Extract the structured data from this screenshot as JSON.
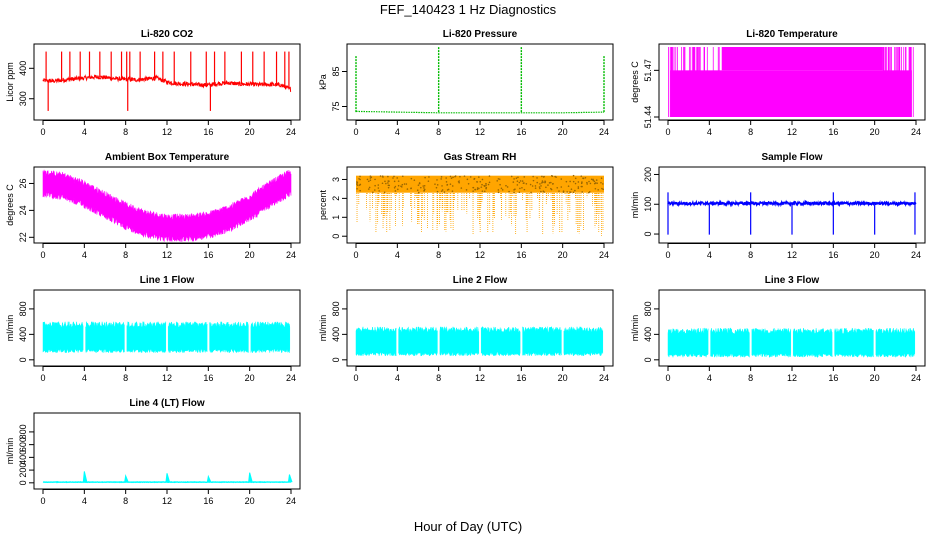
{
  "figure": {
    "title": "FEF_140423  1 Hz Diagnostics",
    "xlabel": "Hour of Day (UTC)"
  },
  "chart_data": [
    {
      "type": "line",
      "title": "Li-820 CO2",
      "ylabel": "Licor ppm",
      "color": "#ff0000",
      "x_ticks": [
        "0",
        "4",
        "8",
        "12",
        "16",
        "20",
        "24"
      ],
      "y_ticks": [
        "300",
        "400"
      ],
      "ylim": [
        240,
        470
      ],
      "series": [
        {
          "name": "",
          "x": [
            0,
            1,
            2,
            3,
            4,
            5,
            6,
            7,
            8,
            9,
            10,
            11,
            12,
            13,
            14,
            15,
            16,
            17,
            18,
            19,
            20,
            21,
            22,
            23,
            24
          ],
          "values": [
            360,
            358,
            362,
            365,
            368,
            372,
            370,
            366,
            364,
            362,
            365,
            368,
            355,
            350,
            348,
            346,
            345,
            350,
            352,
            348,
            348,
            346,
            347,
            345,
            330
          ]
        }
      ]
    },
    {
      "type": "line",
      "title": "Li-820 Pressure",
      "ylabel": "kPa",
      "color": "#00bb00",
      "x_ticks": [
        "0",
        "4",
        "8",
        "12",
        "16",
        "20",
        "24"
      ],
      "y_ticks": [
        "75",
        "85"
      ],
      "ylim": [
        72,
        92
      ],
      "series": [
        {
          "name": "",
          "x": [
            0,
            4,
            8,
            12,
            16,
            20,
            24
          ],
          "values": [
            73.6,
            73.4,
            73.2,
            73.2,
            73.2,
            73.2,
            73.4
          ]
        }
      ]
    },
    {
      "type": "line",
      "title": "Li-820 Temperature",
      "ylabel": "degrees C",
      "color": "#ff00ff",
      "x_ticks": [
        "0",
        "4",
        "8",
        "12",
        "16",
        "20",
        "24"
      ],
      "y_ticks": [
        "51.44",
        "51.47"
      ],
      "ylim": [
        51.44,
        51.485
      ],
      "series": [
        {
          "name": "",
          "x": [
            0,
            24
          ],
          "values": [
            51.44,
            51.47
          ]
        }
      ]
    },
    {
      "type": "line",
      "title": "Ambient Box Temperature",
      "ylabel": "degrees C",
      "color": "#ff00ff",
      "x_ticks": [
        "0",
        "4",
        "8",
        "12",
        "16",
        "20",
        "24"
      ],
      "y_ticks": [
        "22",
        "24",
        "26"
      ],
      "ylim": [
        21.8,
        27.0
      ],
      "series": [
        {
          "name": "",
          "x": [
            0,
            2,
            4,
            6,
            8,
            10,
            12,
            14,
            16,
            18,
            20,
            22,
            24
          ],
          "values": [
            26.0,
            25.8,
            25.2,
            24.4,
            23.6,
            23.0,
            22.7,
            22.7,
            22.9,
            23.4,
            24.2,
            25.2,
            26.1
          ]
        }
      ]
    },
    {
      "type": "line",
      "title": "Gas Stream RH",
      "ylabel": "percent",
      "color": "#ffa500",
      "x_ticks": [
        "0",
        "4",
        "8",
        "12",
        "16",
        "20",
        "24"
      ],
      "y_ticks": [
        "0",
        "1",
        "2",
        "3"
      ],
      "ylim": [
        -0.2,
        3.5
      ],
      "series": [
        {
          "name": "",
          "x": [
            0,
            24
          ],
          "values": [
            2.9,
            2.9
          ]
        }
      ]
    },
    {
      "type": "line",
      "title": "Sample Flow",
      "ylabel": "ml/min",
      "color": "#0000ff",
      "x_ticks": [
        "0",
        "4",
        "8",
        "12",
        "16",
        "20",
        "24"
      ],
      "y_ticks": [
        "0",
        "100",
        "200"
      ],
      "ylim": [
        -20,
        215
      ],
      "series": [
        {
          "name": "",
          "x": [
            0,
            24
          ],
          "values": [
            105,
            105
          ]
        }
      ]
    },
    {
      "type": "area",
      "title": "Line 1 Flow",
      "ylabel": "ml/min",
      "color": "#00ffff",
      "x_ticks": [
        "0",
        "4",
        "8",
        "12",
        "16",
        "20",
        "24"
      ],
      "y_ticks": [
        "0",
        "400",
        "800"
      ],
      "ylim": [
        -50,
        1050
      ],
      "series": [
        {
          "name": "",
          "x": [
            0,
            24
          ],
          "values": [
            110,
            600
          ]
        }
      ]
    },
    {
      "type": "area",
      "title": "Line 2 Flow",
      "ylabel": "ml/min",
      "color": "#00ffff",
      "x_ticks": [
        "0",
        "4",
        "8",
        "12",
        "16",
        "20",
        "24"
      ],
      "y_ticks": [
        "0",
        "400",
        "800"
      ],
      "ylim": [
        -50,
        1050
      ],
      "series": [
        {
          "name": "",
          "x": [
            0,
            24
          ],
          "values": [
            60,
            520
          ]
        }
      ]
    },
    {
      "type": "area",
      "title": "Line 3 Flow",
      "ylabel": "ml/min",
      "color": "#00ffff",
      "x_ticks": [
        "0",
        "4",
        "8",
        "12",
        "16",
        "20",
        "24"
      ],
      "y_ticks": [
        "0",
        "400",
        "800"
      ],
      "ylim": [
        -50,
        1050
      ],
      "series": [
        {
          "name": "",
          "x": [
            0,
            24
          ],
          "values": [
            40,
            500
          ]
        }
      ]
    },
    {
      "type": "line",
      "title": "Line 4 (LT) Flow",
      "ylabel": "ml/min",
      "color": "#00ffff",
      "x_ticks": [
        "0",
        "4",
        "8",
        "12",
        "16",
        "20",
        "24"
      ],
      "y_ticks": [
        "0",
        "200",
        "400",
        "600",
        "800"
      ],
      "ylim": [
        -50,
        1050
      ],
      "series": [
        {
          "name": "",
          "x": [
            0,
            4,
            8,
            12,
            16,
            20,
            24
          ],
          "values": [
            10,
            180,
            110,
            150,
            100,
            160,
            130
          ]
        }
      ]
    }
  ]
}
